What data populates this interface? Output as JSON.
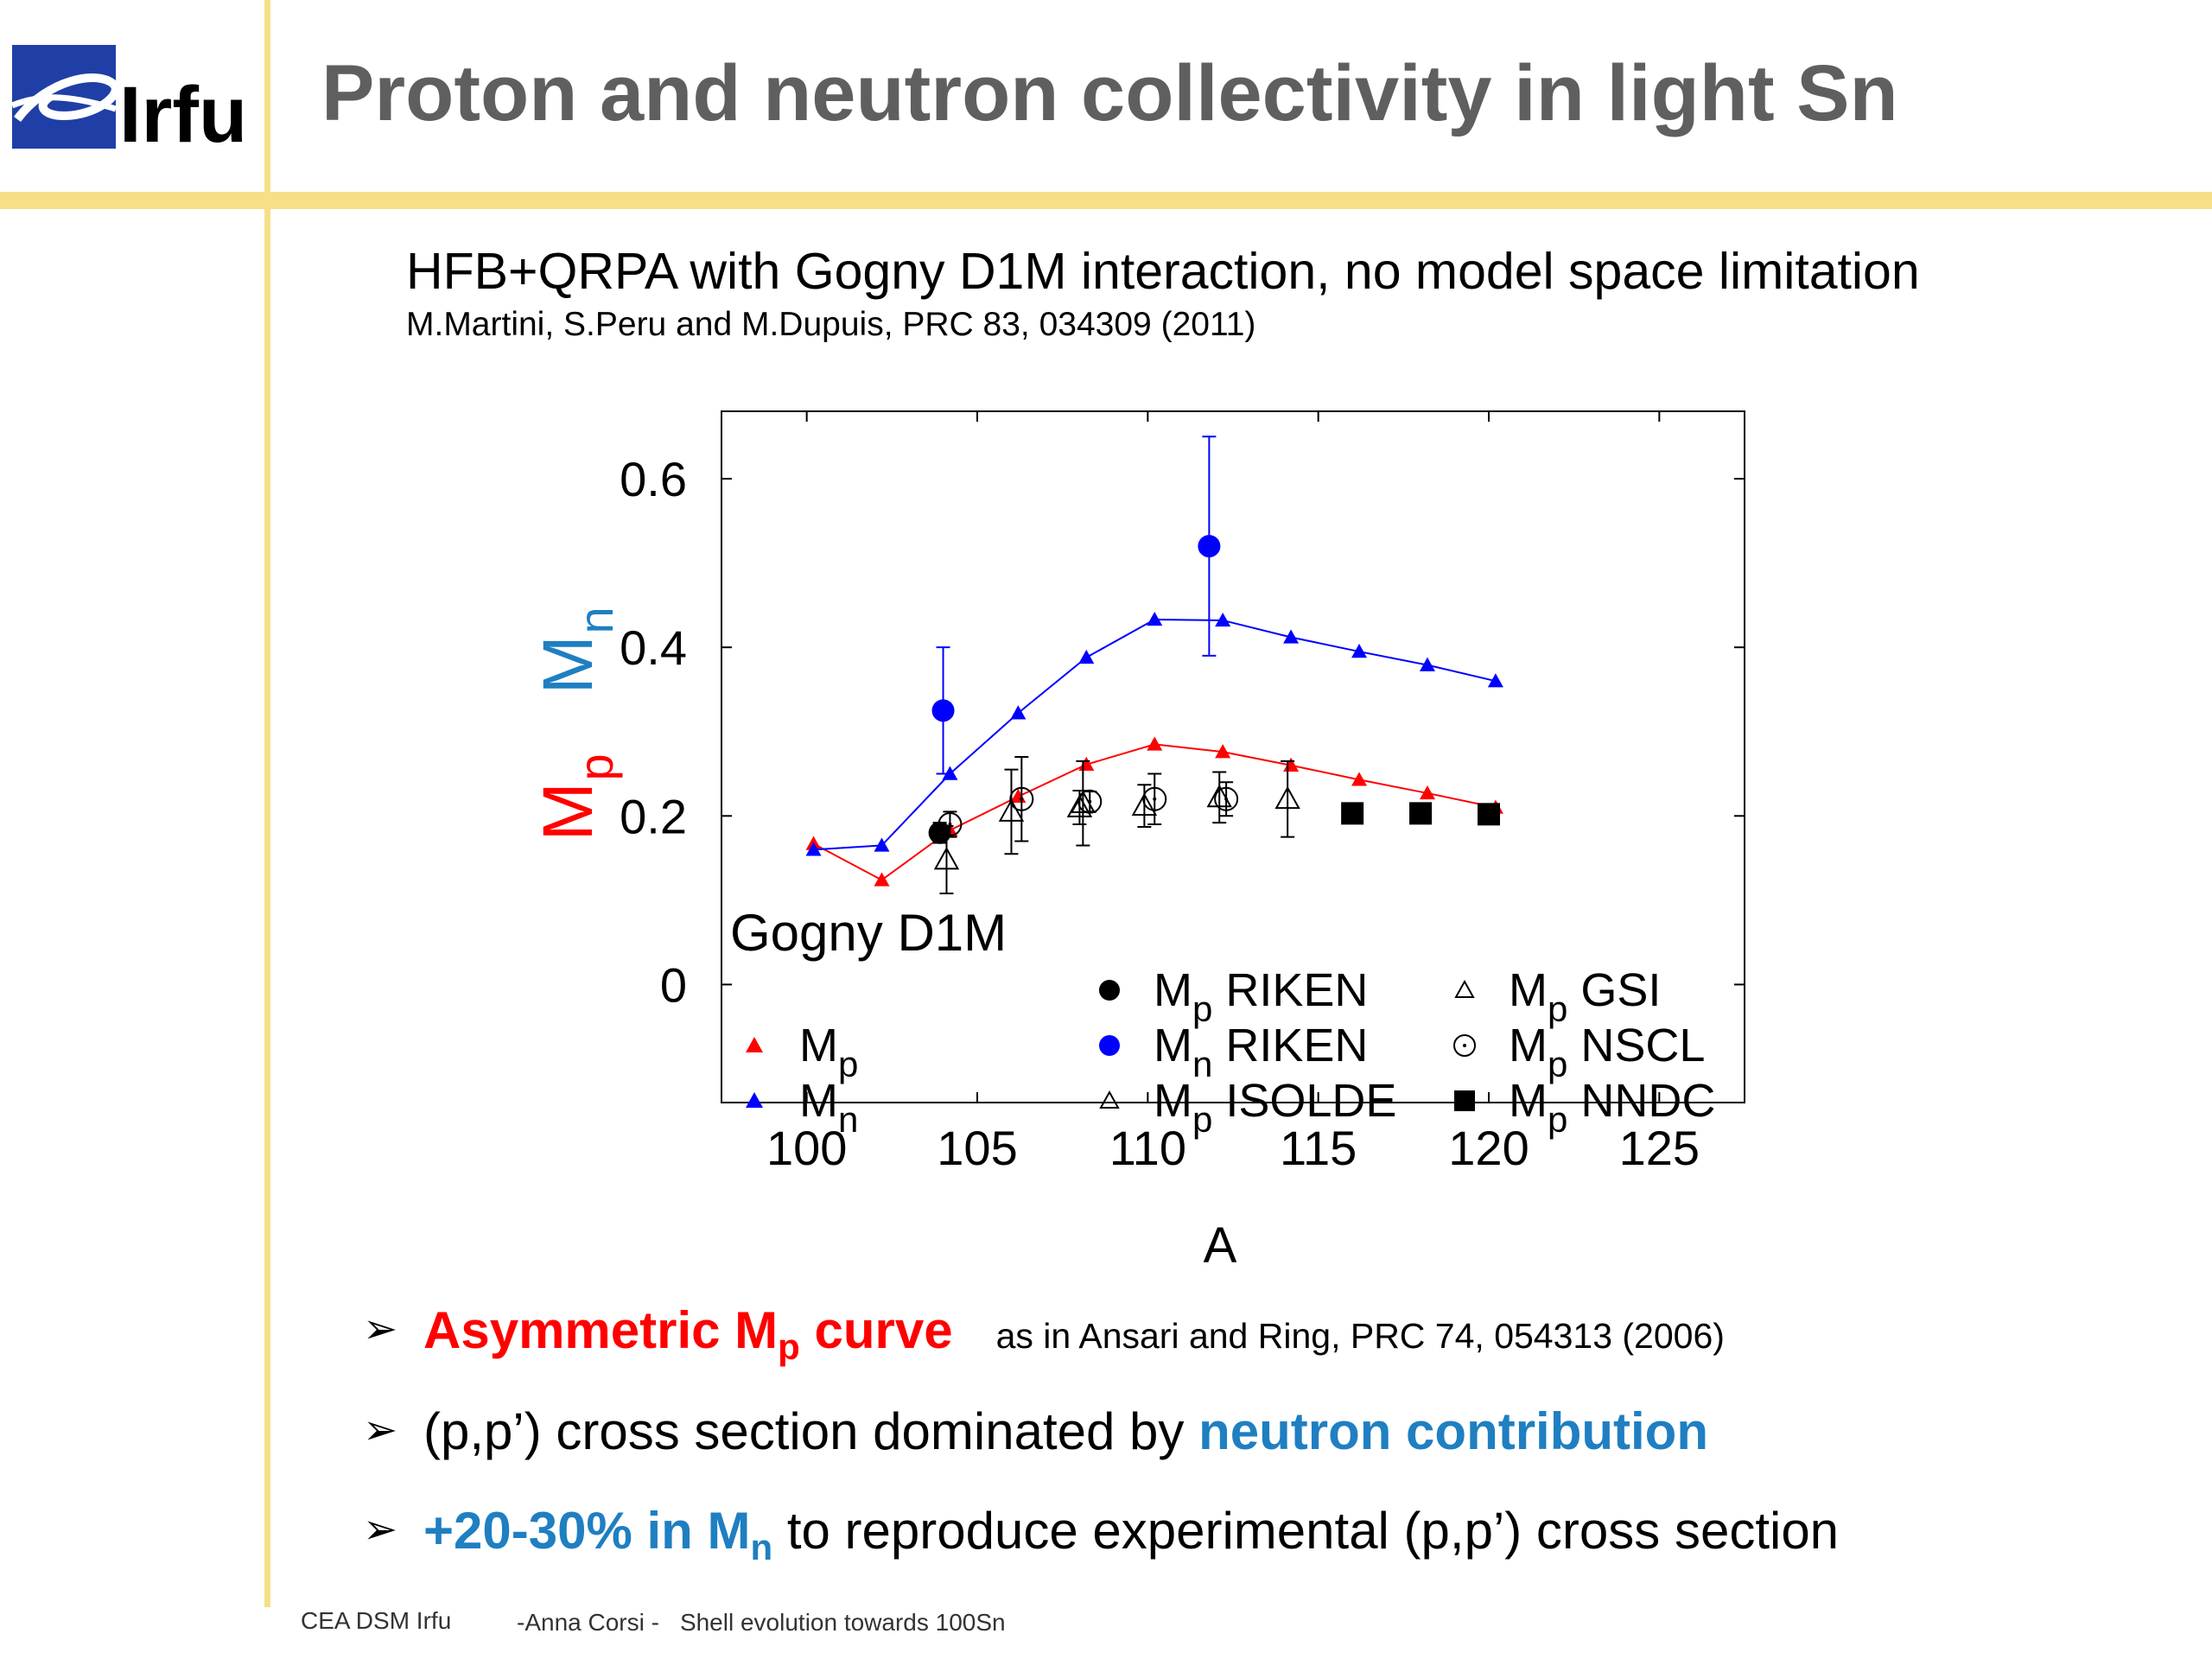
{
  "slide": {
    "logo_text": "Irfu",
    "title": "Proton and neutron collectivity in light Sn",
    "subtitle": "HFB+QRPA with Gogny D1M interaction, no model space limitation",
    "reference": "M.Martini, S.Peru and M.Dupuis, PRC 83, 034309 (2011)"
  },
  "bullets": {
    "b1_main": "Asymmetric M",
    "b1_sub": "p",
    "b1_tail": " curve",
    "b1_ref": "as in Ansari and Ring, PRC 74, 054313 (2006)",
    "b2_prefix": "(p,p’) cross section dominated by ",
    "b2_emph": "neutron contribution",
    "b3_emph": "+20-30% in M",
    "b3_sub": "n",
    "b3_tail": " to reproduce experimental (p,p’) cross section"
  },
  "footer": {
    "org": "CEA DSM Irfu",
    "author": "-Anna Corsi -",
    "talk": "Shell evolution towards 100Sn"
  },
  "colors": {
    "red": "#ff0000",
    "blue": "#1f7fc1",
    "theory_mn": "#0000ff",
    "accent_line": "#f6df86",
    "title_gray": "#5f5f5f"
  },
  "chart_data": {
    "type": "scatter",
    "xlabel": "A",
    "ylabel_parts": [
      {
        "text": "M",
        "sub": "p",
        "color": "#ff0000"
      },
      {
        "text": "M",
        "sub": "n",
        "color": "#1f7fc1"
      }
    ],
    "xlim": [
      97.5,
      127.5
    ],
    "ylim": [
      -0.14,
      0.68
    ],
    "xticks": [
      100,
      105,
      110,
      115,
      120,
      125
    ],
    "yticks": [
      0,
      0.2,
      0.4,
      0.6
    ],
    "ytick_labels": [
      "0",
      "0.2",
      "0.4",
      "0.6"
    ],
    "legend_title": "Gogny D1M",
    "series": [
      {
        "name": "M",
        "sub": "p",
        "kind": "theory",
        "marker": "triangle-filled",
        "color": "#ff0000",
        "x": [
          100.2,
          102.2,
          104.2,
          106.2,
          108.2,
          110.2,
          112.2,
          114.2,
          116.2,
          118.2,
          120.2
        ],
        "y": [
          0.167,
          0.124,
          0.183,
          0.223,
          0.261,
          0.285,
          0.276,
          0.26,
          0.243,
          0.227,
          0.21
        ]
      },
      {
        "name": "M",
        "sub": "n",
        "kind": "theory",
        "marker": "triangle-filled",
        "color": "#0000ff",
        "x": [
          100.2,
          102.2,
          104.2,
          106.2,
          108.2,
          110.2,
          112.2,
          114.2,
          116.2,
          118.2,
          120.2
        ],
        "y": [
          0.16,
          0.165,
          0.25,
          0.322,
          0.388,
          0.433,
          0.432,
          0.412,
          0.395,
          0.379,
          0.36
        ]
      },
      {
        "name": "M",
        "sub": "p",
        "suffix": " RIKEN",
        "marker": "circle-filled",
        "color": "#000000",
        "points": [
          {
            "x": 103.9,
            "y": 0.18,
            "err": 0.012
          }
        ]
      },
      {
        "name": "M",
        "sub": "n",
        "suffix": " RIKEN",
        "marker": "circle-filled",
        "color": "#0000ff",
        "points": [
          {
            "x": 104.0,
            "y": 0.325,
            "err": 0.075
          },
          {
            "x": 111.8,
            "y": 0.52,
            "err": 0.13
          }
        ]
      },
      {
        "name": "M",
        "sub": "p",
        "suffix": " ISOLDE",
        "marker": "triangle-open",
        "color": "#000000",
        "points": [
          {
            "x": 104.1,
            "y": 0.148,
            "err": 0.04
          },
          {
            "x": 106.0,
            "y": 0.205,
            "err": 0.05
          },
          {
            "x": 108.1,
            "y": 0.215,
            "err": 0.05
          },
          {
            "x": 109.9,
            "y": 0.212,
            "err": 0.025
          },
          {
            "x": 112.1,
            "y": 0.222,
            "err": 0.03
          },
          {
            "x": 114.1,
            "y": 0.22,
            "err": 0.045
          }
        ]
      },
      {
        "name": "M",
        "sub": "p",
        "suffix": " GSI",
        "marker": "triangle-open",
        "color": "#000000",
        "points": [
          {
            "x": 108.0,
            "y": 0.21,
            "err": 0.02
          }
        ]
      },
      {
        "name": "M",
        "sub": "p",
        "suffix": " NSCL",
        "marker": "circle-open",
        "color": "#000000",
        "points": [
          {
            "x": 104.2,
            "y": 0.19,
            "err": 0.015
          },
          {
            "x": 106.3,
            "y": 0.22,
            "err": 0.05
          },
          {
            "x": 108.3,
            "y": 0.217,
            "err": 0.012
          },
          {
            "x": 110.2,
            "y": 0.22,
            "err": 0.03
          },
          {
            "x": 112.3,
            "y": 0.22,
            "err": 0.02
          }
        ]
      },
      {
        "name": "M",
        "sub": "p",
        "suffix": " NNDC",
        "marker": "square-filled",
        "color": "#000000",
        "points": [
          {
            "x": 116.0,
            "y": 0.203
          },
          {
            "x": 118.0,
            "y": 0.203
          },
          {
            "x": 120.0,
            "y": 0.202
          }
        ]
      }
    ],
    "legend": {
      "col1": [
        {
          "series": 0
        },
        {
          "series": 1
        }
      ],
      "col2": [
        {
          "series": 2
        },
        {
          "series": 3
        },
        {
          "series": 4
        }
      ],
      "col3": [
        {
          "series": 5
        },
        {
          "series": 6
        },
        {
          "series": 7
        }
      ]
    }
  }
}
